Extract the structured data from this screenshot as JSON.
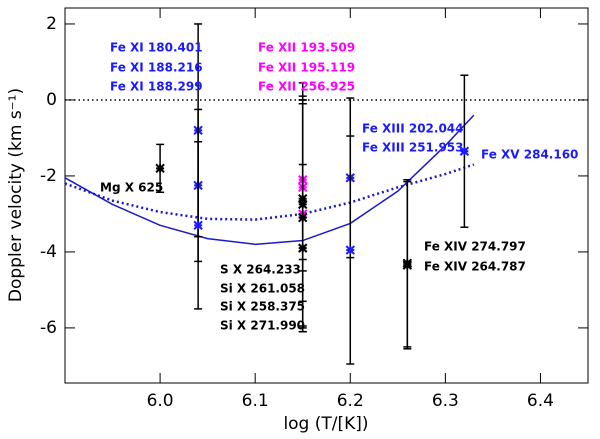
{
  "chart_data": {
    "type": "errorbar",
    "xlabel": "log (T/[K])",
    "ylabel": "Doppler velocity (km s⁻¹)",
    "xlim": [
      5.9,
      6.45
    ],
    "ylim": [
      -7.45,
      2.42
    ],
    "xticks": [
      {
        "value": 6.0,
        "label": "6.0"
      },
      {
        "value": 6.1,
        "label": "6.1"
      },
      {
        "value": 6.2,
        "label": "6.2"
      },
      {
        "value": 6.3,
        "label": "6.3"
      },
      {
        "value": 6.4,
        "label": "6.4"
      }
    ],
    "yticks": [
      -6,
      -4,
      -2,
      0,
      2
    ],
    "reference_line": 0,
    "points": [
      {
        "x": 6.0,
        "y": -1.8,
        "err": 0.63,
        "color": "#000000"
      },
      {
        "x": 6.04,
        "y": -0.8,
        "err": 2.8,
        "color": "#1a1aff"
      },
      {
        "x": 6.04,
        "y": -2.25,
        "err": 2.0,
        "color": "#1a1aff"
      },
      {
        "x": 6.04,
        "y": -3.3,
        "err": 2.2,
        "color": "#1a1aff"
      },
      {
        "x": 6.15,
        "y": -2.1,
        "err": 2.1,
        "color": "#ff00ff"
      },
      {
        "x": 6.15,
        "y": -2.3,
        "err": 2.2,
        "color": "#ff00ff"
      },
      {
        "x": 6.15,
        "y": -3.0,
        "err": 3.0,
        "color": "#ff00ff"
      },
      {
        "x": 6.15,
        "y": -2.6,
        "err": 2.7,
        "color": "#000000"
      },
      {
        "x": 6.15,
        "y": -2.75,
        "err": 3.2,
        "color": "#000000"
      },
      {
        "x": 6.15,
        "y": -3.1,
        "err": 3.0,
        "color": "#000000"
      },
      {
        "x": 6.15,
        "y": -3.9,
        "err": 2.2,
        "color": "#000000"
      },
      {
        "x": 6.2,
        "y": -2.05,
        "err": 2.1,
        "color": "#1a1aff"
      },
      {
        "x": 6.2,
        "y": -3.95,
        "err": 3.0,
        "color": "#1a1aff"
      },
      {
        "x": 6.26,
        "y": -4.35,
        "err": 2.2,
        "color": "#000000"
      },
      {
        "x": 6.26,
        "y": -4.3,
        "err": 2.2,
        "color": "#000000"
      },
      {
        "x": 6.32,
        "y": -1.35,
        "err": 2.0,
        "color": "#1a1aff"
      }
    ],
    "curves": [
      {
        "color": "#1a1acc",
        "style": "solid",
        "x": [
          5.9,
          5.95,
          6.0,
          6.05,
          6.1,
          6.15,
          6.2,
          6.25,
          6.3,
          6.33
        ],
        "values": [
          -2.05,
          -2.75,
          -3.3,
          -3.65,
          -3.8,
          -3.7,
          -3.25,
          -2.4,
          -1.2,
          -0.4
        ]
      },
      {
        "color": "#1a1acc",
        "style": "dotted",
        "x": [
          5.9,
          5.95,
          6.0,
          6.05,
          6.1,
          6.15,
          6.2,
          6.25,
          6.3,
          6.33
        ],
        "values": [
          -2.2,
          -2.65,
          -2.95,
          -3.13,
          -3.15,
          -3.0,
          -2.7,
          -2.3,
          -1.95,
          -1.7
        ]
      }
    ],
    "annotations": [
      {
        "text": "Fe XI 180.401",
        "color": "#1a1aff"
      },
      {
        "text": "Fe XI 188.216",
        "color": "#1a1aff"
      },
      {
        "text": "Fe XI 188.299",
        "color": "#1a1aff"
      },
      {
        "text": "Fe XII 193.509",
        "color": "#ff00ff"
      },
      {
        "text": "Fe XII 195.119",
        "color": "#ff00ff"
      },
      {
        "text": "Fe XII 256.925",
        "color": "#ff00ff"
      },
      {
        "text": "Fe XIII 202.044",
        "color": "#1a1aff"
      },
      {
        "text": "Fe XIII 251.953",
        "color": "#1a1aff"
      },
      {
        "text": "Fe XV 284.160",
        "color": "#1a1aff"
      },
      {
        "text": "Mg X 625",
        "color": "#000000"
      },
      {
        "text": "Fe XIV 274.797",
        "color": "#000000"
      },
      {
        "text": "Fe XIV 264.787",
        "color": "#000000"
      },
      {
        "text": "S X 264.233",
        "color": "#000000"
      },
      {
        "text": "Si X 261.058",
        "color": "#000000"
      },
      {
        "text": "Si X 258.375",
        "color": "#000000"
      },
      {
        "text": "Si X 271.990",
        "color": "#000000"
      }
    ]
  }
}
